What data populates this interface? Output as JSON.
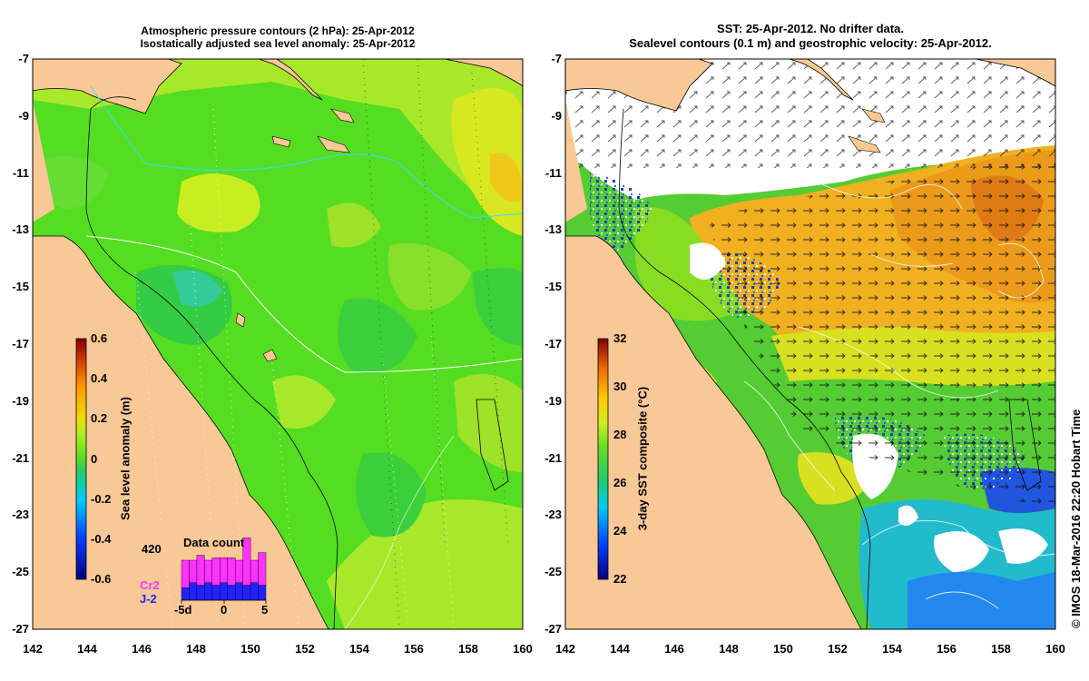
{
  "left_panel": {
    "title_line1": "Atmospheric pressure contours (2 hPa): 25-Apr-2012",
    "title_line2": "Isostatically adjusted sea level anomaly: 25-Apr-2012",
    "colorbar_label": "Sea level anomaly (m)",
    "colorbar_ticks": [
      "0.6",
      "0.4",
      "0.2",
      "0",
      "-0.2",
      "-0.4",
      "-0.6"
    ],
    "inset": {
      "title": "Data count",
      "max_label": "420",
      "series1": "Cr2",
      "series2": "J-2",
      "x_ticks": [
        "-5d",
        "0",
        "5"
      ],
      "cr2_counts": [
        0.55,
        0.45,
        0.6,
        0.45,
        0.55,
        0.5,
        0.55,
        0.45,
        0.95,
        0.45,
        0.65
      ],
      "j2_counts": [
        0.25,
        0.35,
        0.3,
        0.35,
        0.3,
        0.35,
        0.3,
        0.35,
        0.3,
        0.35,
        0.3
      ],
      "colors": {
        "cr2": "#ff33ff",
        "j2": "#2222ff"
      }
    }
  },
  "right_panel": {
    "title_line1": "SST: 25-Apr-2012. No drifter data.",
    "title_line2": "Sealevel contours (0.1 m) and geostrophic velocity: 25-Apr-2012.",
    "colorbar_label": "3-day SST composite (°C)",
    "colorbar_ticks": [
      "32",
      "30",
      "28",
      "26",
      "24",
      "22"
    ]
  },
  "axes": {
    "lat_ticks": [
      "-7",
      "-9",
      "-11",
      "-13",
      "-15",
      "-17",
      "-19",
      "-21",
      "-23",
      "-25",
      "-27"
    ],
    "lon_ticks": [
      "142",
      "144",
      "146",
      "148",
      "150",
      "152",
      "154",
      "156",
      "158",
      "160"
    ]
  },
  "credit": "© IMOS 18-Mar-2016 22:20 Hobart Time",
  "colors": {
    "land": "#f8c896",
    "ocean_green": "#55dd22",
    "sst_orange": "#f0a020"
  }
}
